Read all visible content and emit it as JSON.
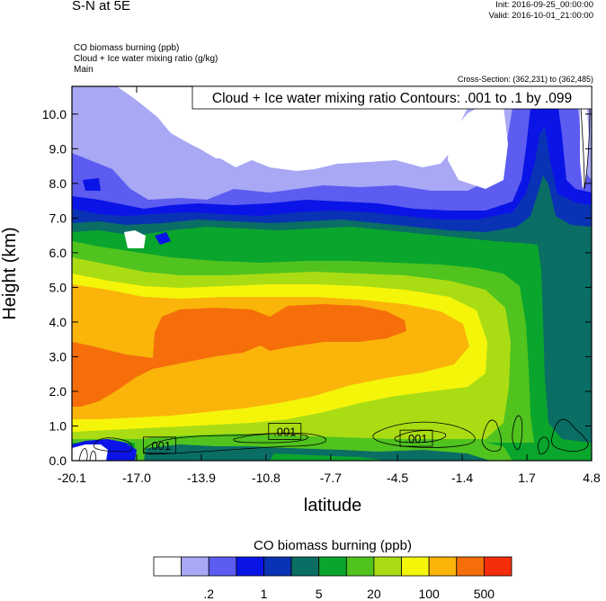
{
  "header": {
    "title": "S-N at 5E",
    "init": "Init: 2016-09-25_00:00:00",
    "valid": "Valid: 2016-10-01_21:00:00",
    "variable_1": "CO biomass burning   (ppb)",
    "variable_2": "Cloud + Ice water mixing ratio   (g/kg)",
    "variable_3": "Main",
    "cross_section": "Cross-Section: (362,231) to (362,485)"
  },
  "chart_data": {
    "type": "heatmap",
    "title": "",
    "xlabel": "latitude",
    "ylabel": "Height (km)",
    "xlim": [
      -20.1,
      4.8
    ],
    "ylim": [
      0.0,
      10.8
    ],
    "x_ticks": [
      "-20.1",
      "-17.0",
      "-13.9",
      "-10.8",
      "-7.7",
      "-4.5",
      "-1.4",
      "1.7",
      "4.8"
    ],
    "x_tick_values": [
      -20.1,
      -17.0,
      -13.9,
      -10.8,
      -7.7,
      -4.5,
      -1.4,
      1.7,
      4.8
    ],
    "y_ticks": [
      "0.0",
      "1.0",
      "2.0",
      "3.0",
      "4.0",
      "5.0",
      "6.0",
      "7.0",
      "8.0",
      "9.0",
      "10.0"
    ],
    "y_tick_values": [
      0,
      1,
      2,
      3,
      4,
      5,
      6,
      7,
      8,
      9,
      10
    ],
    "contour_note": "Cloud + Ice water mixing ratio Contours: .001 to .1 by .099",
    "contour_labels": [
      {
        "text": ".001",
        "x": -15.9,
        "y": 0.42
      },
      {
        "text": ".001",
        "x": -9.9,
        "y": 0.82
      },
      {
        "text": ".001",
        "x": -3.6,
        "y": 0.62
      }
    ],
    "colorbar": {
      "title": "CO biomass burning  (ppb)",
      "colors": [
        "#ffffff",
        "#a8a8f5",
        "#5c5cf0",
        "#0a14e6",
        "#0a32b4",
        "#0a6e64",
        "#0aa52d",
        "#50c31e",
        "#aadc14",
        "#f5f50a",
        "#fab40a",
        "#f56e0a",
        "#f52d0a"
      ],
      "labels": [
        ".2",
        "1",
        "5",
        "20",
        "100",
        "500"
      ]
    }
  }
}
